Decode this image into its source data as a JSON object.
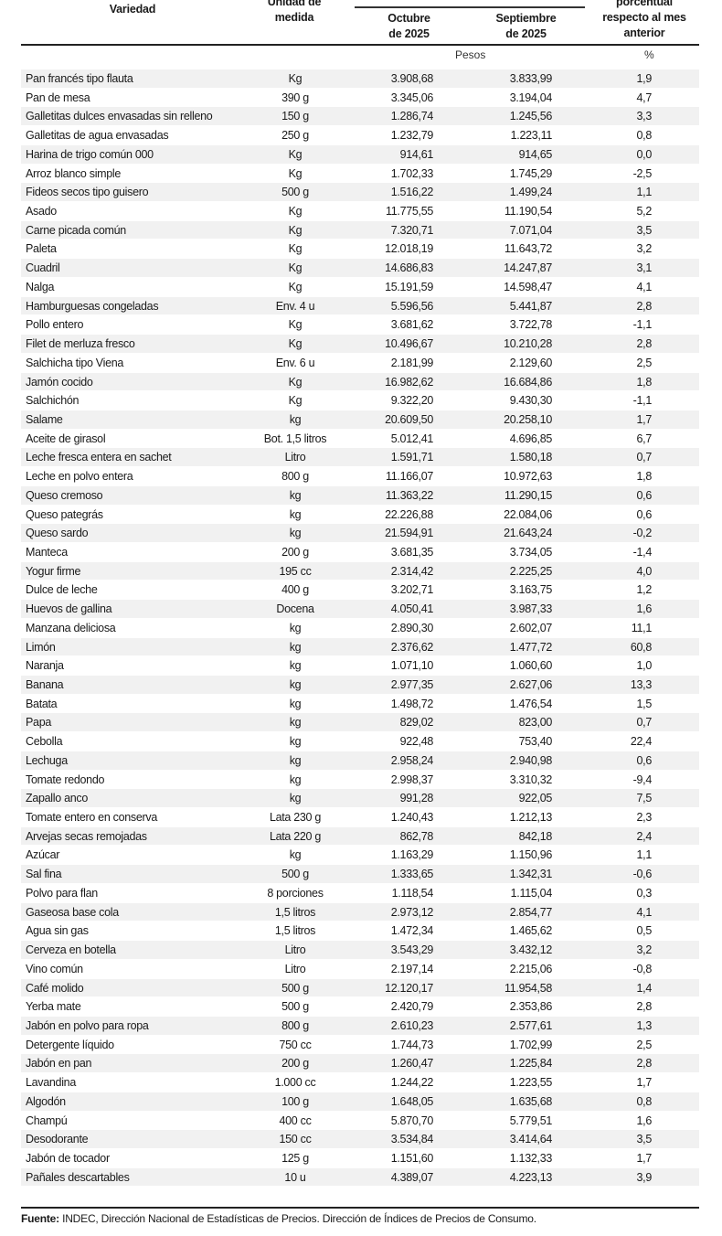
{
  "header": {
    "variedad": "Variedad",
    "unidad_line1": "Unidad de",
    "unidad_line2": "medida",
    "octubre_line1": "Octubre",
    "octubre_line2": "de 2025",
    "septiembre_line1": "Septiembre",
    "septiembre_line2": "de 2025",
    "variacion_line1": "porcentual",
    "variacion_line2": "respecto al mes",
    "variacion_line3": "anterior"
  },
  "units_row": {
    "pesos": "Pesos",
    "percent": "%"
  },
  "rows": [
    [
      "Pan francés tipo flauta",
      "Kg",
      "3.908,68",
      "3.833,99",
      "1,9"
    ],
    [
      "Pan de mesa",
      "390 g",
      "3.345,06",
      "3.194,04",
      "4,7"
    ],
    [
      "Galletitas dulces envasadas sin relleno",
      "150 g",
      "1.286,74",
      "1.245,56",
      "3,3"
    ],
    [
      "Galletitas de agua envasadas",
      "250 g",
      "1.232,79",
      "1.223,11",
      "0,8"
    ],
    [
      "Harina de trigo común 000",
      "Kg",
      "914,61",
      "914,65",
      "0,0"
    ],
    [
      "Arroz blanco simple",
      "Kg",
      "1.702,33",
      "1.745,29",
      "-2,5"
    ],
    [
      "Fideos secos tipo guisero",
      "500 g",
      "1.516,22",
      "1.499,24",
      "1,1"
    ],
    [
      "Asado",
      "Kg",
      "11.775,55",
      "11.190,54",
      "5,2"
    ],
    [
      "Carne picada común",
      "Kg",
      "7.320,71",
      "7.071,04",
      "3,5"
    ],
    [
      "Paleta",
      "Kg",
      "12.018,19",
      "11.643,72",
      "3,2"
    ],
    [
      "Cuadril",
      "Kg",
      "14.686,83",
      "14.247,87",
      "3,1"
    ],
    [
      "Nalga",
      "Kg",
      "15.191,59",
      "14.598,47",
      "4,1"
    ],
    [
      "Hamburguesas congeladas",
      "Env. 4 u",
      "5.596,56",
      "5.441,87",
      "2,8"
    ],
    [
      "Pollo entero",
      "Kg",
      "3.681,62",
      "3.722,78",
      "-1,1"
    ],
    [
      "Filet de merluza fresco",
      "Kg",
      "10.496,67",
      "10.210,28",
      "2,8"
    ],
    [
      "Salchicha tipo Viena",
      "Env. 6 u",
      "2.181,99",
      "2.129,60",
      "2,5"
    ],
    [
      "Jamón cocido",
      "Kg",
      "16.982,62",
      "16.684,86",
      "1,8"
    ],
    [
      "Salchichón",
      "Kg",
      "9.322,20",
      "9.430,30",
      "-1,1"
    ],
    [
      "Salame",
      "kg",
      "20.609,50",
      "20.258,10",
      "1,7"
    ],
    [
      "Aceite de girasol",
      "Bot. 1,5 litros",
      "5.012,41",
      "4.696,85",
      "6,7"
    ],
    [
      "Leche fresca entera en sachet",
      "Litro",
      "1.591,71",
      "1.580,18",
      "0,7"
    ],
    [
      "Leche en polvo entera",
      "800 g",
      "11.166,07",
      "10.972,63",
      "1,8"
    ],
    [
      "Queso cremoso",
      "kg",
      "11.363,22",
      "11.290,15",
      "0,6"
    ],
    [
      "Queso pategrás",
      "kg",
      "22.226,88",
      "22.084,06",
      "0,6"
    ],
    [
      "Queso sardo",
      "kg",
      "21.594,91",
      "21.643,24",
      "-0,2"
    ],
    [
      "Manteca",
      "200 g",
      "3.681,35",
      "3.734,05",
      "-1,4"
    ],
    [
      "Yogur firme",
      "195 cc",
      "2.314,42",
      "2.225,25",
      "4,0"
    ],
    [
      "Dulce de leche",
      "400 g",
      "3.202,71",
      "3.163,75",
      "1,2"
    ],
    [
      "Huevos de gallina",
      "Docena",
      "4.050,41",
      "3.987,33",
      "1,6"
    ],
    [
      "Manzana deliciosa",
      "kg",
      "2.890,30",
      "2.602,07",
      "11,1"
    ],
    [
      "Limón",
      "kg",
      "2.376,62",
      "1.477,72",
      "60,8"
    ],
    [
      "Naranja",
      "kg",
      "1.071,10",
      "1.060,60",
      "1,0"
    ],
    [
      "Banana",
      "kg",
      "2.977,35",
      "2.627,06",
      "13,3"
    ],
    [
      "Batata",
      "kg",
      "1.498,72",
      "1.476,54",
      "1,5"
    ],
    [
      "Papa",
      "kg",
      "829,02",
      "823,00",
      "0,7"
    ],
    [
      "Cebolla",
      "kg",
      "922,48",
      "753,40",
      "22,4"
    ],
    [
      "Lechuga",
      "kg",
      "2.958,24",
      "2.940,98",
      "0,6"
    ],
    [
      "Tomate redondo",
      "kg",
      "2.998,37",
      "3.310,32",
      "-9,4"
    ],
    [
      "Zapallo anco",
      "kg",
      "991,28",
      "922,05",
      "7,5"
    ],
    [
      "Tomate entero en conserva",
      "Lata 230 g",
      "1.240,43",
      "1.212,13",
      "2,3"
    ],
    [
      "Arvejas secas remojadas",
      "Lata 220 g",
      "862,78",
      "842,18",
      "2,4"
    ],
    [
      "Azúcar",
      "kg",
      "1.163,29",
      "1.150,96",
      "1,1"
    ],
    [
      "Sal fina",
      "500 g",
      "1.333,65",
      "1.342,31",
      "-0,6"
    ],
    [
      "Polvo para flan",
      "8 porciones",
      "1.118,54",
      "1.115,04",
      "0,3"
    ],
    [
      "Gaseosa base cola",
      "1,5 litros",
      "2.973,12",
      "2.854,77",
      "4,1"
    ],
    [
      "Agua sin gas",
      "1,5 litros",
      "1.472,34",
      "1.465,62",
      "0,5"
    ],
    [
      "Cerveza en botella",
      "Litro",
      "3.543,29",
      "3.432,12",
      "3,2"
    ],
    [
      "Vino común",
      "Litro",
      "2.197,14",
      "2.215,06",
      "-0,8"
    ],
    [
      "Café molido",
      "500 g",
      "12.120,17",
      "11.954,58",
      "1,4"
    ],
    [
      "Yerba mate",
      "500 g",
      "2.420,79",
      "2.353,86",
      "2,8"
    ],
    [
      "Jabón en polvo para ropa",
      "800 g",
      "2.610,23",
      "2.577,61",
      "1,3"
    ],
    [
      "Detergente líquido",
      "750 cc",
      "1.744,73",
      "1.702,99",
      "2,5"
    ],
    [
      "Jabón en pan",
      "200 g",
      "1.260,47",
      "1.225,84",
      "2,8"
    ],
    [
      "Lavandina",
      "1.000 cc",
      "1.244,22",
      "1.223,55",
      "1,7"
    ],
    [
      "Algodón",
      "100 g",
      "1.648,05",
      "1.635,68",
      "0,8"
    ],
    [
      "Champú",
      "400 cc",
      "5.870,70",
      "5.779,51",
      "1,6"
    ],
    [
      "Desodorante",
      "150 cc",
      "3.534,84",
      "3.414,64",
      "3,5"
    ],
    [
      "Jabón de tocador",
      "125 g",
      "1.151,60",
      "1.132,33",
      "1,7"
    ],
    [
      "Pañales descartables",
      "10 u",
      "4.389,07",
      "4.223,13",
      "3,9"
    ]
  ],
  "footer": {
    "label": "Fuente:",
    "text": " INDEC, Dirección Nacional de Estadísticas de Precios. Dirección de Índices de Precios de Consumo."
  }
}
